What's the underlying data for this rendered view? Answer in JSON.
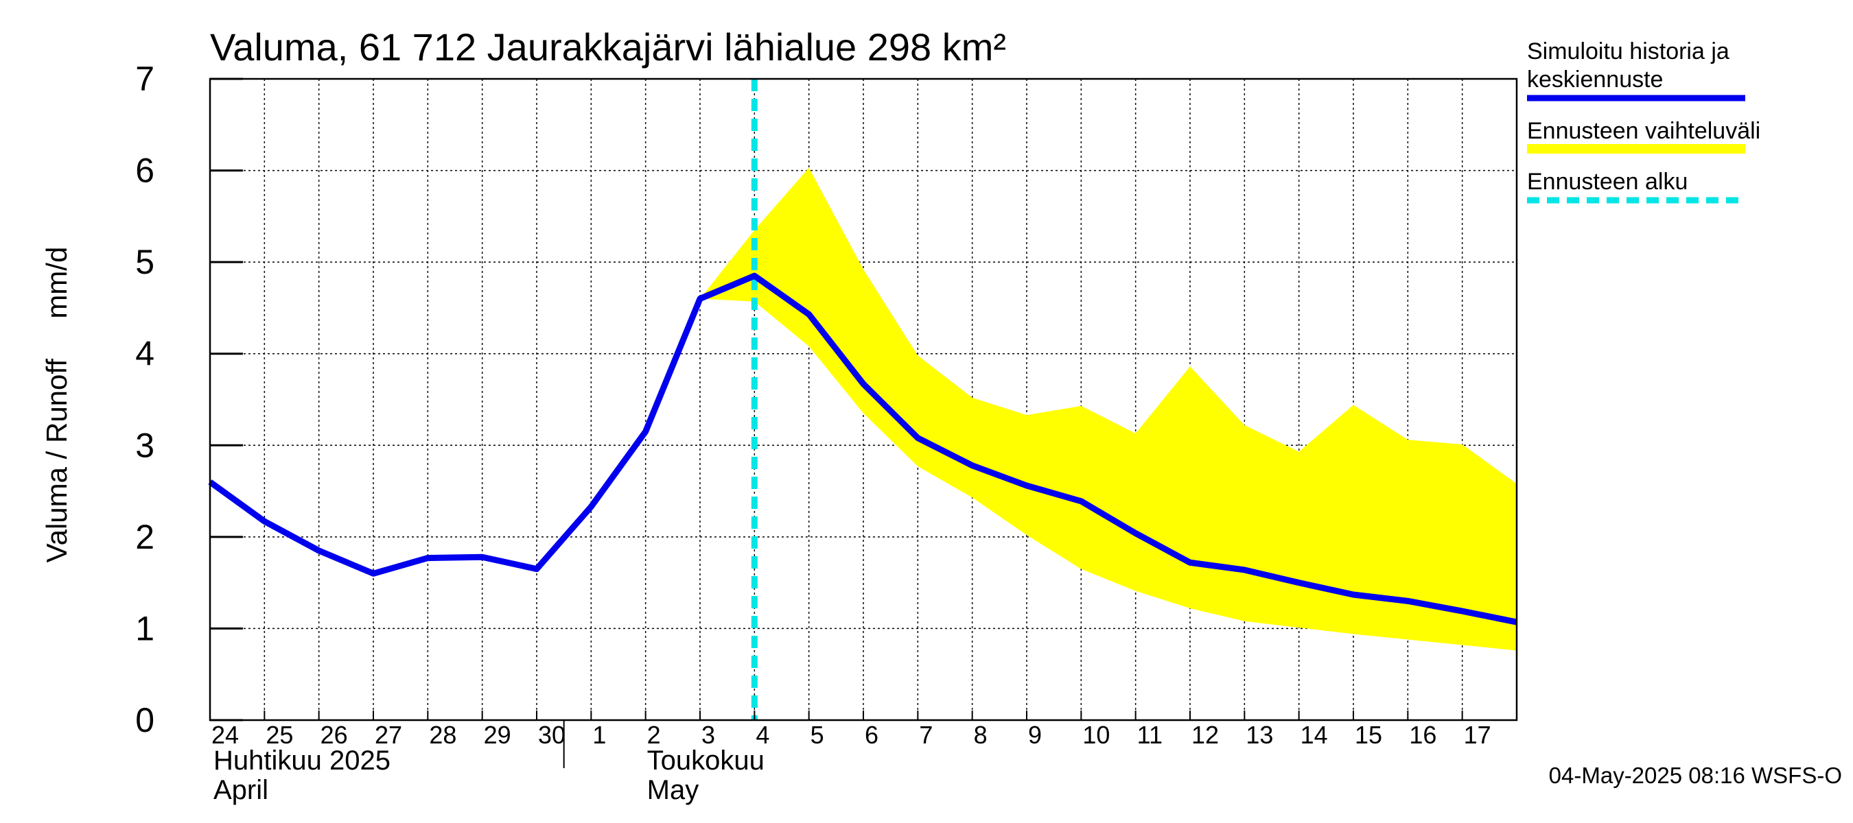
{
  "chart_data": {
    "type": "line",
    "title": "Valuma, 61 712 Jaurakkajärvi lähialue 298 km²",
    "ylabel": "Valuma / Runoff     mm/d",
    "ylim": [
      0,
      7
    ],
    "yticks": [
      "0",
      "1",
      "2",
      "3",
      "4",
      "5",
      "6",
      "7"
    ],
    "grid": true,
    "x": [
      "24",
      "25",
      "26",
      "27",
      "28",
      "29",
      "30",
      "1",
      "2",
      "3",
      "4",
      "5",
      "6",
      "7",
      "8",
      "9",
      "10",
      "11",
      "12",
      "13",
      "14",
      "15",
      "16",
      "17",
      "18"
    ],
    "x_tick_labels": [
      "24",
      "25",
      "26",
      "27",
      "28",
      "29",
      "30",
      "1",
      "2",
      "3",
      "4",
      "5",
      "6",
      "7",
      "8",
      "9",
      "10",
      "11",
      "12",
      "13",
      "14",
      "15",
      "16",
      "17"
    ],
    "month_labels": [
      {
        "line1": "Huhtikuu  2025",
        "line2": "April"
      },
      {
        "line1": "Toukokuu",
        "line2": "May"
      }
    ],
    "series": [
      {
        "name": "Simuloitu historia ja keskiennuste",
        "color": "#0000ee",
        "values": [
          2.6,
          2.17,
          1.85,
          1.6,
          1.77,
          1.78,
          1.65,
          2.33,
          3.15,
          4.6,
          4.85,
          4.43,
          3.67,
          3.08,
          2.78,
          2.56,
          2.39,
          2.04,
          1.72,
          1.64,
          1.5,
          1.37,
          1.3,
          1.19,
          1.07
        ]
      }
    ],
    "band": {
      "name": "Ennusteen vaihteluväli",
      "color": "#ffff00",
      "start_index": 9,
      "upper": [
        4.6,
        5.35,
        6.03,
        4.92,
        3.98,
        3.52,
        3.33,
        3.43,
        3.13,
        3.86,
        3.22,
        2.93,
        3.44,
        3.06,
        3.01,
        2.58
      ],
      "lower": [
        4.6,
        4.57,
        4.08,
        3.35,
        2.77,
        2.43,
        2.02,
        1.65,
        1.41,
        1.22,
        1.08,
        1.01,
        0.94,
        0.88,
        0.82,
        0.76
      ]
    },
    "forecast_start": {
      "name": "Ennusteen alku",
      "x": "4",
      "color": "#00e5e5"
    },
    "legend": {
      "placement": "right",
      "items": [
        {
          "label": "Simuloitu historia ja keskiennuste",
          "lines": [
            "Simuloitu historia ja",
            "keskiennuste"
          ],
          "color": "#0000ee",
          "style": "solid"
        },
        {
          "label": "Ennusteen vaihteluväli",
          "lines": [
            "Ennusteen vaihteluväli"
          ],
          "color": "#ffff00",
          "style": "band"
        },
        {
          "label": "Ennusteen alku",
          "lines": [
            "Ennusteen alku"
          ],
          "color": "#00e5e5",
          "style": "dashed"
        }
      ]
    },
    "footer": "04-May-2025 08:16 WSFS-O"
  }
}
